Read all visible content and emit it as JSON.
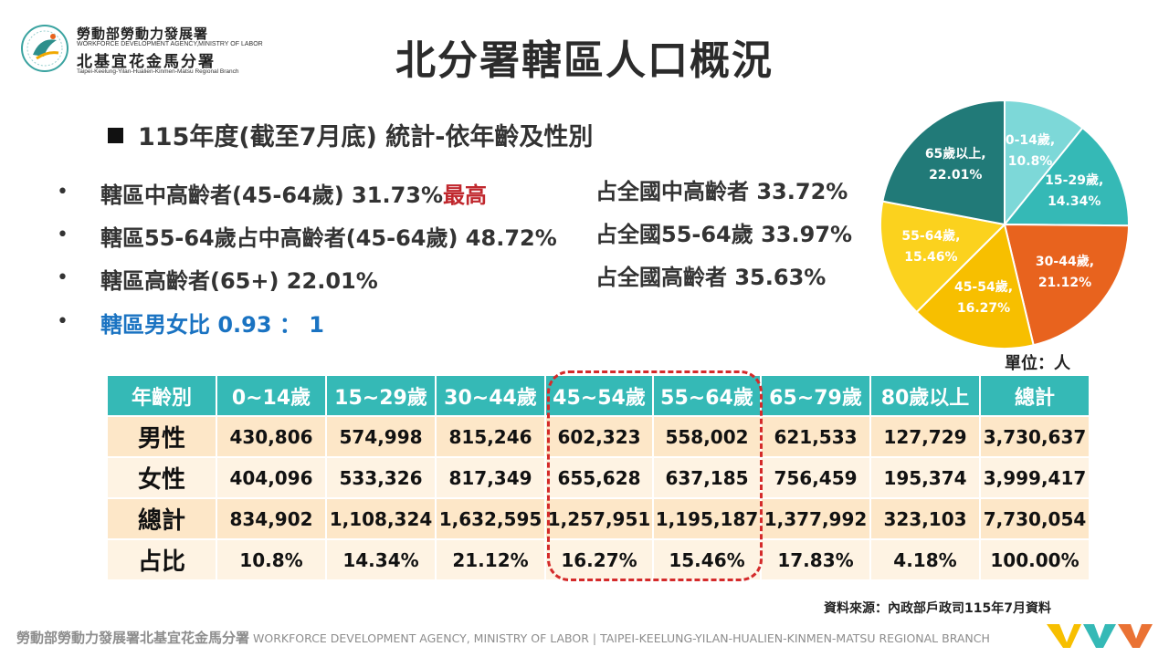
{
  "logo": {
    "line1": "勞動部勞動力發展署",
    "line2": "WORKFORCE DEVELOPMENT AGENCY,MINISTRY OF LABOR",
    "line3": "北基宜花金馬分署",
    "line4": "Taipei-Keelung-Yilan-Hualien-Kinmen-Matsu Regional Branch"
  },
  "title": "北分署轄區人口概況",
  "subtitle": "115年度(截至7月底) 統計-依年齡及性別",
  "stats": [
    {
      "left": "轄區中高齡者(45-64歲) 31.73%",
      "highlight": "最高",
      "right": "占全國中高齡者 33.72%"
    },
    {
      "left": "轄區55-64歲占中高齡者(45-64歲) 48.72%",
      "highlight": "",
      "right": "占全國55-64歲 33.97%"
    },
    {
      "left": "轄區高齡者(65+) 22.01%",
      "highlight": "",
      "right": "占全國高齡者 35.63%"
    },
    {
      "left": "轄區男女比",
      "highlight": "",
      "value": "0.93 ： 1",
      "right": ""
    }
  ],
  "bullet_char": "•",
  "chart_data": {
    "type": "pie",
    "slices": [
      {
        "label": "0-14歲,",
        "pct_text": "10.8%",
        "value": 10.8,
        "color": "#7dd8d8"
      },
      {
        "label": "15-29歲,",
        "pct_text": "14.34%",
        "value": 14.34,
        "color": "#35b9b6"
      },
      {
        "label": "30-44歲,",
        "pct_text": "21.12%",
        "value": 21.12,
        "color": "#e8631e"
      },
      {
        "label": "45-54歲,",
        "pct_text": "16.27%",
        "value": 16.27,
        "color": "#f7bf00"
      },
      {
        "label": "55-64歲,",
        "pct_text": "15.46%",
        "value": 15.46,
        "color": "#fbd21e"
      },
      {
        "label": "65歲以上,",
        "pct_text": "22.01%",
        "value": 22.01,
        "color": "#217a78"
      }
    ]
  },
  "unit": "單位：人",
  "table": {
    "headers": [
      "年齡別",
      "0~14歲",
      "15~29歲",
      "30~44歲",
      "45~54歲",
      "55~64歲",
      "65~79歲",
      "80歲以上",
      "總計"
    ],
    "rows": [
      {
        "label": "男性",
        "cells": [
          "430,806",
          "574,998",
          "815,246",
          "602,323",
          "558,002",
          "621,533",
          "127,729",
          "3,730,637"
        ]
      },
      {
        "label": "女性",
        "cells": [
          "404,096",
          "533,326",
          "817,349",
          "655,628",
          "637,185",
          "756,459",
          "195,374",
          "3,999,417"
        ]
      },
      {
        "label": "總計",
        "cells": [
          "834,902",
          "1,108,324",
          "1,632,595",
          "1,257,951",
          "1,195,187",
          "1,377,992",
          "323,103",
          "7,730,054"
        ]
      },
      {
        "label": "占比",
        "cells": [
          "10.8%",
          "14.34%",
          "21.12%",
          "16.27%",
          "15.46%",
          "17.83%",
          "4.18%",
          "100.00%"
        ]
      }
    ]
  },
  "source": "資料來源：內政部戶政司115年7月資料",
  "footer": {
    "cn": "勞動部勞動力發展署北基宜花金馬分署",
    "en": "WORKFORCE DEVELOPMENT AGENCY, MINISTRY OF LABOR  |  TAIPEI-KEELUNG-YILAN-HUALIEN-KINMEN-MATSU REGIONAL BRANCH"
  }
}
